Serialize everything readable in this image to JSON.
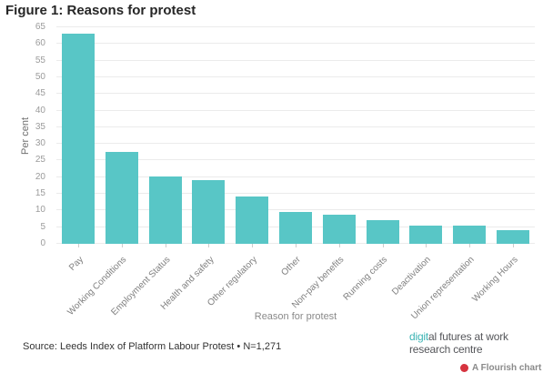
{
  "title": "Figure 1: Reasons for protest",
  "chart_data": {
    "type": "bar",
    "title": "Figure 1: Reasons for protest",
    "xlabel": "Reason for protest",
    "ylabel": "Per cent",
    "ylim": [
      0,
      65
    ],
    "yticks": [
      0,
      5,
      10,
      15,
      20,
      25,
      30,
      35,
      40,
      45,
      50,
      55,
      60,
      65
    ],
    "grid": true,
    "legend": "none",
    "categories": [
      "Pay",
      "Working Conditions",
      "Employment Status",
      "Health and safety",
      "Other regulatory",
      "Other",
      "Non-pay benefits",
      "Running costs",
      "Deactivation",
      "Union representation",
      "Working Hours"
    ],
    "values": [
      63,
      27.5,
      20.3,
      19.2,
      14.2,
      9.5,
      8.8,
      7.2,
      5.4,
      5.6,
      4.2
    ]
  },
  "footer": {
    "source": "Source: Leeds Index of Platform Labour Protest • N=1,271",
    "logo": {
      "line1_teal": "digit",
      "line1_rest": "al futures at work",
      "line2": "research centre"
    },
    "flourish_label": "A Flourish chart"
  },
  "colors": {
    "bar": "#58c6c6",
    "grid": "#ebebeb",
    "axis_text": "#9b9b9b",
    "title_text": "#262626",
    "logo_teal": "#3cb4b4",
    "logo_gray": "#55565a",
    "flourish_dot": "#d6333f"
  }
}
